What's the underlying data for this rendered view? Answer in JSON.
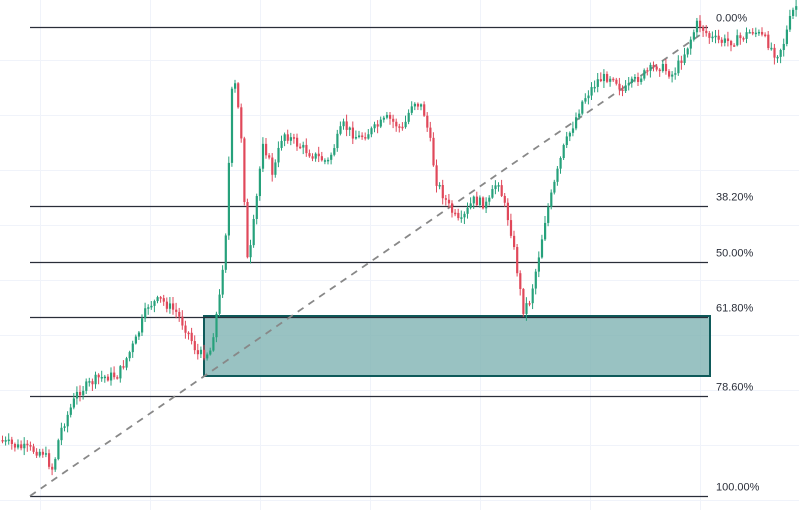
{
  "chart_data": {
    "type": "candlestick",
    "title": "",
    "xlabel": "",
    "ylabel": "",
    "grid": true,
    "legend": "none",
    "fib_levels": [
      {
        "label": "0.00%",
        "ratio": 0.0
      },
      {
        "label": "38.20%",
        "ratio": 0.382
      },
      {
        "label": "50.00%",
        "ratio": 0.5
      },
      {
        "label": "61.80%",
        "ratio": 0.618
      },
      {
        "label": "78.60%",
        "ratio": 0.786
      },
      {
        "label": "100.00%",
        "ratio": 1.0
      }
    ],
    "zone": {
      "from_ratio": 0.618,
      "to_ratio": 0.786,
      "color": "#7fb3b3",
      "border": "#0e5a5a"
    },
    "trend_line": {
      "from_ratio": 1.0,
      "to_ratio": 0.0,
      "style": "dashed",
      "color": "#888888"
    },
    "colors": {
      "up": "#26a17b",
      "down": "#e0485a",
      "level_line": "#2a2e39",
      "grid": "#f0f3fa"
    }
  }
}
